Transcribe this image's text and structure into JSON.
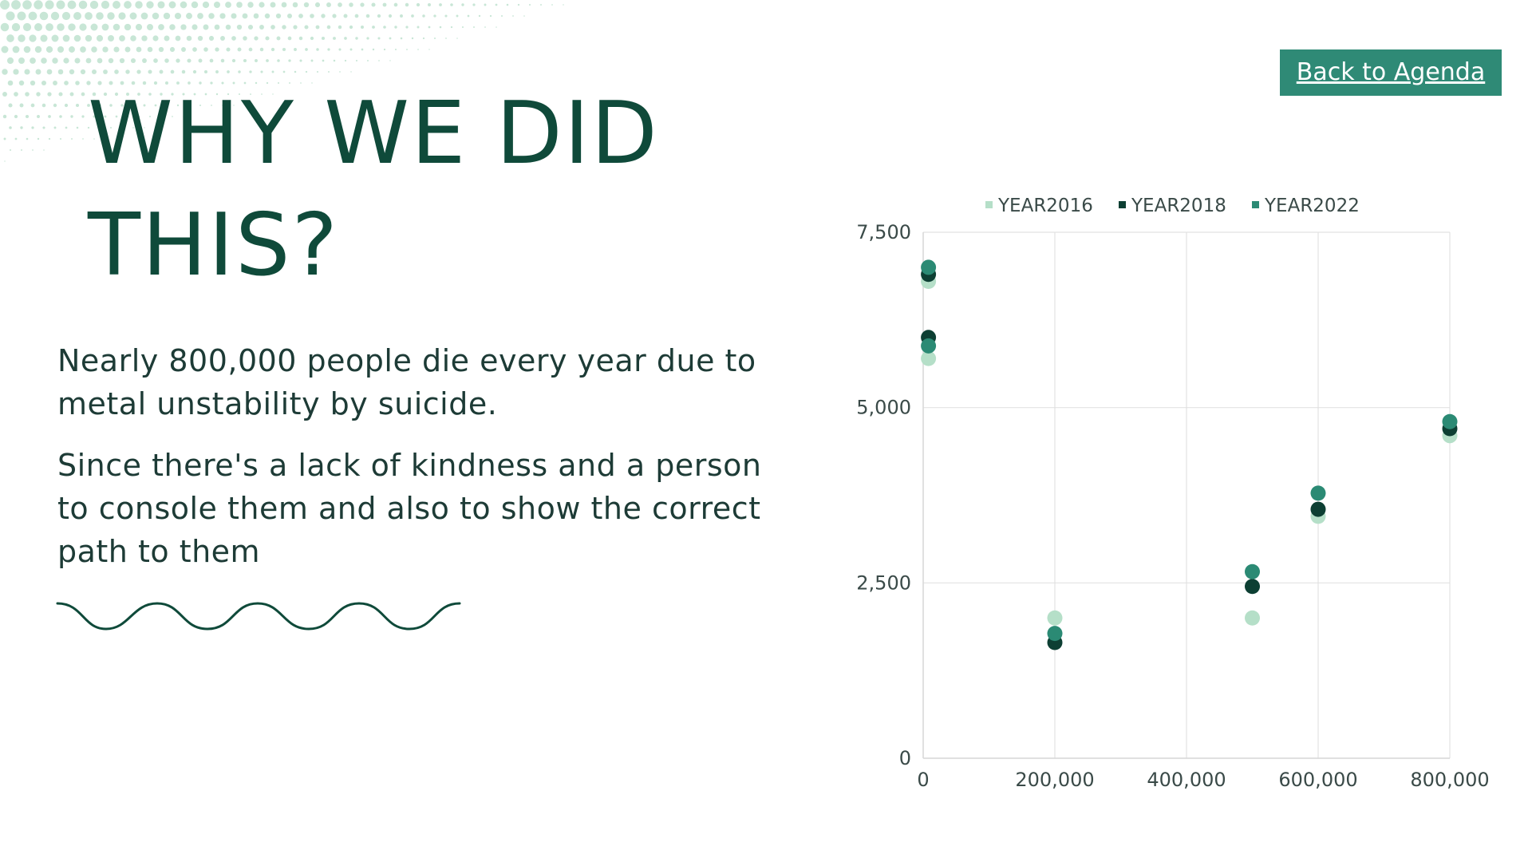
{
  "slide": {
    "title_line1": "WHY WE DID",
    "title_line2": "THIS?",
    "paragraph1": "Nearly 800,000 people die every year due to metal unstability by suicide.",
    "paragraph2": "Since there's a lack of kindness and a person to console them and also to show the correct path to them",
    "back_button_label": "Back to Agenda"
  },
  "colors": {
    "title": "#0f4a3a",
    "button_bg": "#2f8a76",
    "year2016": "#b5dfc8",
    "year2018": "#0d3f33",
    "year2022": "#2b8a74"
  },
  "chart_data": {
    "type": "scatter",
    "xlabel": "",
    "ylabel": "",
    "xlim": [
      0,
      800000
    ],
    "ylim": [
      0,
      7500
    ],
    "x_ticks": [
      "0",
      "200,000",
      "400,000",
      "600,000",
      "800,000"
    ],
    "y_ticks": [
      "0",
      "2,500",
      "5,000",
      "7,500"
    ],
    "grid": true,
    "legend_position": "top",
    "series": [
      {
        "name": "YEAR2016",
        "color": "#b5dfc8",
        "points": [
          [
            8000,
            6800
          ],
          [
            8000,
            5700
          ],
          [
            200000,
            2000
          ],
          [
            500000,
            2000
          ],
          [
            600000,
            3450
          ],
          [
            800000,
            4600
          ]
        ]
      },
      {
        "name": "YEAR2018",
        "color": "#0d3f33",
        "points": [
          [
            8000,
            6900
          ],
          [
            8000,
            6000
          ],
          [
            200000,
            1650
          ],
          [
            500000,
            2450
          ],
          [
            600000,
            3550
          ],
          [
            800000,
            4700
          ]
        ]
      },
      {
        "name": "YEAR2022",
        "color": "#2b8a74",
        "points": [
          [
            8000,
            7000
          ],
          [
            8000,
            5880
          ],
          [
            200000,
            1780
          ],
          [
            500000,
            2660
          ],
          [
            600000,
            3780
          ],
          [
            800000,
            4800
          ]
        ]
      }
    ]
  }
}
